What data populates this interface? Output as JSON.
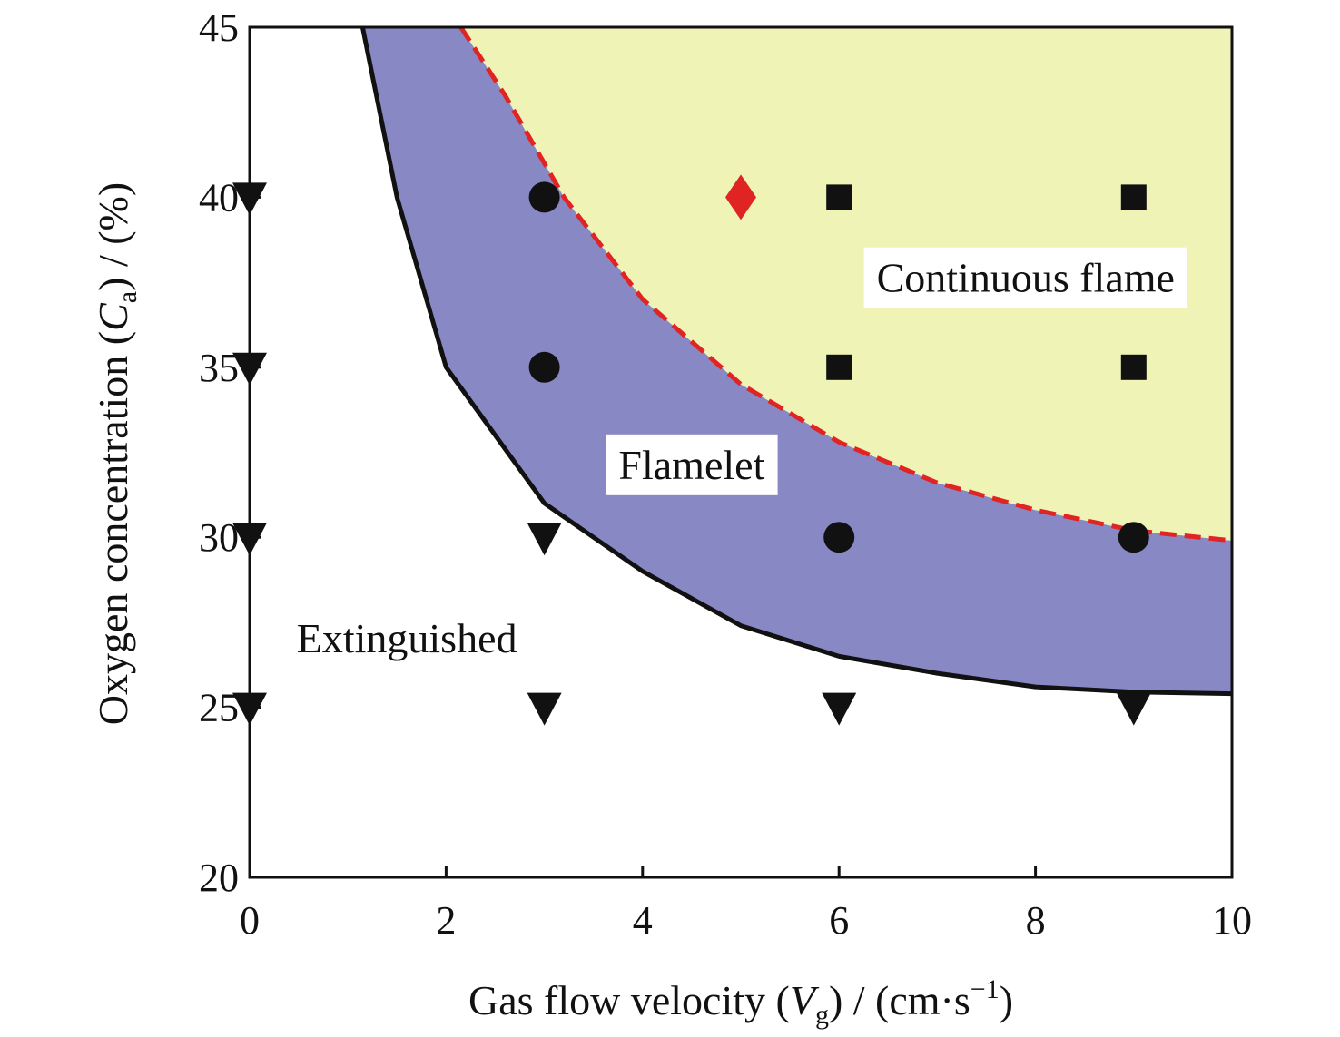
{
  "chart_data": {
    "type": "scatter",
    "xlim": [
      0,
      10
    ],
    "ylim": [
      20,
      45
    ],
    "xticks": [
      0,
      2,
      4,
      6,
      8,
      10
    ],
    "yticks": [
      20,
      25,
      30,
      35,
      40,
      45
    ],
    "grid": false,
    "xlabel": {
      "main": "Gas flow velocity (",
      "var": "V",
      "sub": "g",
      "tail": ") / (cm·s",
      "sup": "−1",
      "end": ")"
    },
    "ylabel": {
      "main": "Oxygen concentration (",
      "var": "C",
      "sub": "a",
      "tail": ") / (%)"
    },
    "series": [
      {
        "marker": "triangle-down",
        "color": "#111111",
        "points": [
          [
            0,
            40
          ],
          [
            0,
            35
          ],
          [
            0,
            30
          ],
          [
            0,
            25
          ],
          [
            3,
            30
          ],
          [
            3,
            25
          ],
          [
            6,
            25
          ],
          [
            9,
            25
          ]
        ]
      },
      {
        "marker": "circle",
        "color": "#111111",
        "points": [
          [
            3,
            40
          ],
          [
            3,
            35
          ],
          [
            6,
            30
          ],
          [
            9,
            30
          ]
        ]
      },
      {
        "marker": "square",
        "color": "#111111",
        "points": [
          [
            6,
            40
          ],
          [
            9,
            40
          ],
          [
            6,
            35
          ],
          [
            9,
            35
          ]
        ]
      },
      {
        "marker": "diamond",
        "color": "#e02424",
        "points": [
          [
            5,
            40
          ]
        ]
      }
    ],
    "boundaries": {
      "extinction": {
        "style": "solid",
        "color": "#111111",
        "points": [
          [
            1.15,
            45
          ],
          [
            1.5,
            40
          ],
          [
            2.0,
            35
          ],
          [
            3.0,
            31
          ],
          [
            4.0,
            29
          ],
          [
            5.0,
            27.4
          ],
          [
            6.0,
            26.5
          ],
          [
            7.0,
            26.0
          ],
          [
            8.0,
            25.6
          ],
          [
            9.0,
            25.45
          ],
          [
            10.0,
            25.4
          ]
        ]
      },
      "continuous": {
        "style": "dashed",
        "color": "#e02424",
        "points": [
          [
            2.15,
            45
          ],
          [
            2.6,
            43
          ],
          [
            3.2,
            40
          ],
          [
            4.0,
            37
          ],
          [
            5.0,
            34.5
          ],
          [
            6.0,
            32.8
          ],
          [
            7.0,
            31.6
          ],
          [
            8.0,
            30.8
          ],
          [
            9.0,
            30.2
          ],
          [
            10.0,
            29.9
          ]
        ]
      }
    },
    "regions": [
      {
        "name": "Flamelet",
        "color": "#8888c4"
      },
      {
        "name": "Continuous flame",
        "color": "#eff3b5"
      }
    ],
    "annotations": [
      {
        "text": "Continuous flame",
        "x": 7.9,
        "y": 37.5
      },
      {
        "text": "Flamelet",
        "x": 4.5,
        "y": 32.0
      },
      {
        "text": "Extinguished",
        "x": 1.6,
        "y": 26.9
      }
    ]
  }
}
